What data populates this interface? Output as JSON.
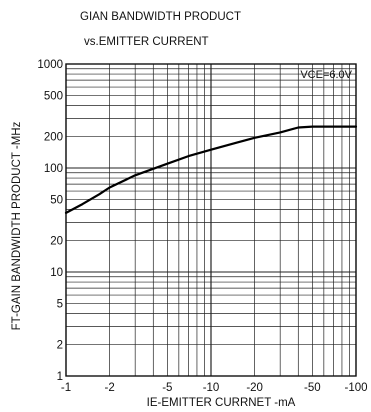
{
  "chart_data": {
    "type": "line",
    "title": [
      "GIAN BANDWIDTH PRODUCT",
      "vs.EMITTER CURRENT"
    ],
    "xlabel": "IE-EMITTER CURRNET -mA",
    "ylabel": "FT-GAIN BANDWIDTH PRODUCT -MHz",
    "x_scale": "log",
    "y_scale": "log",
    "xlim": [
      1,
      100
    ],
    "ylim": [
      1,
      1000
    ],
    "x_ticks": [
      1,
      2,
      5,
      10,
      20,
      50,
      100
    ],
    "x_tick_labels": [
      "-1",
      "-2",
      "-5",
      "-10",
      "-20",
      "-50",
      "-100"
    ],
    "y_ticks": [
      1,
      2,
      5,
      10,
      20,
      50,
      100,
      200,
      500,
      1000
    ],
    "y_tick_labels": [
      "1",
      "2",
      "5",
      "10",
      "20",
      "50",
      "100",
      "200",
      "500",
      "1000"
    ],
    "annotation": "VCE=6.0V",
    "grid": true,
    "series": [
      {
        "x": [
          1,
          1.3,
          1.7,
          2,
          3,
          5,
          7,
          10,
          15,
          20,
          30,
          40,
          50,
          70,
          100
        ],
        "y": [
          37,
          45,
          56,
          65,
          85,
          110,
          130,
          150,
          175,
          195,
          220,
          245,
          250,
          250,
          250
        ]
      }
    ]
  }
}
